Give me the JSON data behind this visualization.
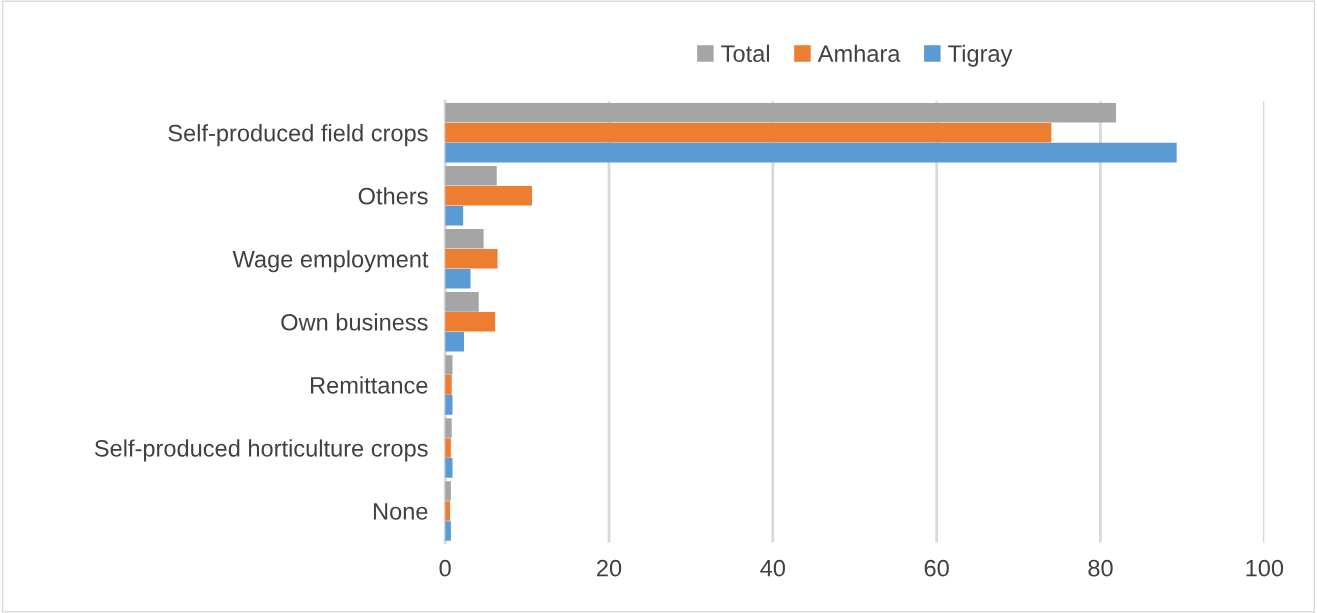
{
  "chart_data": {
    "type": "bar",
    "orientation": "horizontal",
    "categories": [
      "Self-produced field crops",
      "Others",
      "Wage employment",
      "Own business",
      "Remittance",
      "Self-produced horticulture crops",
      "None"
    ],
    "series": [
      {
        "name": "Total",
        "color": "#a5a5a5",
        "values": [
          81.9,
          6.3,
          4.7,
          4.1,
          0.9,
          0.8,
          0.7
        ]
      },
      {
        "name": "Amhara",
        "color": "#ed7d31",
        "values": [
          74.0,
          10.6,
          6.4,
          6.1,
          0.8,
          0.7,
          0.6
        ]
      },
      {
        "name": "Tigray",
        "color": "#5b9bd5",
        "values": [
          89.3,
          2.2,
          3.1,
          2.3,
          0.9,
          0.9,
          0.7
        ]
      }
    ],
    "xlim": [
      0,
      100
    ],
    "xticks": [
      0,
      20,
      40,
      60,
      80,
      100
    ],
    "grid": "x",
    "legend": "top"
  }
}
